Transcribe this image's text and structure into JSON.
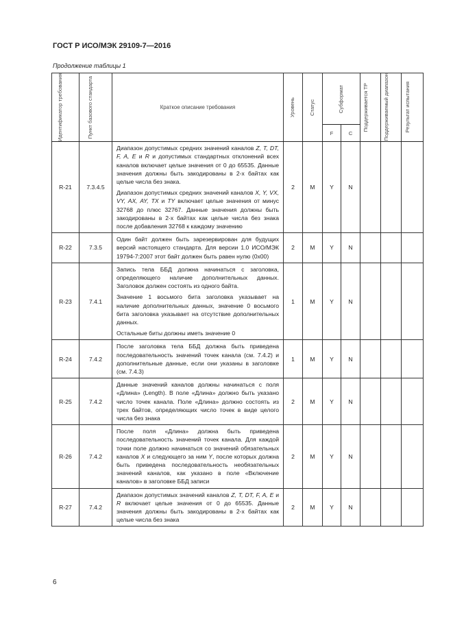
{
  "document": {
    "title": "ГОСТ Р ИСО/МЭК 29109-7—2016",
    "caption": "Продолжение таблицы 1",
    "page_number": "6"
  },
  "table": {
    "headers": {
      "id": "Идентификатор требования",
      "clause": "Пункт базового стандарта",
      "description": "Краткое описание требования",
      "level": "Уровень",
      "status": "Статус",
      "subformat": "Субформат",
      "subformat_f": "F",
      "subformat_c": "C",
      "supported_tp": "Поддерживается ТР",
      "supported_range": "Поддерживаемый диапазон",
      "test_result": "Результат испытания"
    },
    "rows": [
      {
        "id": "R-21",
        "clause": "7.3.4.5",
        "level": "2",
        "status": "M",
        "f": "Y",
        "c": "N",
        "paragraphs": [
          [
            {
              "t": "Диапазон допустимых средних значений каналов "
            },
            {
              "t": "Z, T, DT, F, A, E",
              "i": true
            },
            {
              "t": " и "
            },
            {
              "t": "R",
              "i": true
            },
            {
              "t": " и допустимых стандартных отклонений всех каналов включает целые значения от 0 до 65535. Данные значения должны быть закодированы в 2-х байтах как целые числа без знака."
            }
          ],
          [
            {
              "t": "Диапазон допустимых средних значений каналов "
            },
            {
              "t": "X, Y, VX, VY, AX, AY, TX",
              "i": true
            },
            {
              "t": " и "
            },
            {
              "t": "TY",
              "i": true
            },
            {
              "t": " включает целые значения от минус 32768 до плюс 32767. Данные значения должны быть закодированы в 2-х байтах как целые числа без знака после добавления 32768 к каждому значению"
            }
          ]
        ]
      },
      {
        "id": "R-22",
        "clause": "7.3.5",
        "level": "2",
        "status": "M",
        "f": "Y",
        "c": "N",
        "paragraphs": [
          [
            {
              "t": "Один байт должен быть зарезервирован для будущих версий настоящего стандарта. Для версии 1.0 ИСО/МЭК 19794-7:2007 этот байт должен быть равен нулю (0x00)"
            }
          ]
        ]
      },
      {
        "id": "R-23",
        "clause": "7.4.1",
        "level": "1",
        "status": "M",
        "f": "Y",
        "c": "N",
        "paragraphs": [
          [
            {
              "t": "Запись тела ББД должна начинаться с заголовка, определяющего наличие дополнительных данных. Заголовок должен состоять из одного байта."
            }
          ],
          [
            {
              "t": "Значение 1 восьмого бита заголовка указывает на наличие дополнительных данных, значение 0 восьмого бита заголовка указывает на отсутствие дополнительных данных."
            }
          ],
          [
            {
              "t": "Остальные биты должны иметь значение 0"
            }
          ]
        ]
      },
      {
        "id": "R-24",
        "clause": "7.4.2",
        "level": "1",
        "status": "M",
        "f": "Y",
        "c": "N",
        "paragraphs": [
          [
            {
              "t": "После заголовка тела ББД должна быть приведена последовательность значений точек канала (см. 7.4.2) и дополнительные данные, если они указаны в заголовке (см. 7.4.3)"
            }
          ]
        ]
      },
      {
        "id": "R-25",
        "clause": "7.4.2",
        "level": "2",
        "status": "M",
        "f": "Y",
        "c": "N",
        "paragraphs": [
          [
            {
              "t": "Данные значений каналов должны начинаться с поля «Длина» (Length). В поле «Длина» должно быть указано число точек канала. Поле «Длина» должно состоять из трех байтов, определяющих число точек в виде целого числа без знака"
            }
          ]
        ]
      },
      {
        "id": "R-26",
        "clause": "7.4.2",
        "level": "2",
        "status": "M",
        "f": "Y",
        "c": "N",
        "paragraphs": [
          [
            {
              "t": "После поля «Длина» должна быть приведена последовательность значений точек канала. Для каждой точки поле должно начинаться со значений обязательных каналов "
            },
            {
              "t": "X",
              "i": true
            },
            {
              "t": " и следующего за ним "
            },
            {
              "t": "Y",
              "i": true
            },
            {
              "t": ", после которых должна быть приведена последовательность необязательных значений каналов, как указано в поле «Включение каналов» в заголовке ББД записи"
            }
          ]
        ]
      },
      {
        "id": "R-27",
        "clause": "7.4.2",
        "level": "2",
        "status": "M",
        "f": "Y",
        "c": "N",
        "paragraphs": [
          [
            {
              "t": "Диапазон допустимых значений каналов "
            },
            {
              "t": "Z, T, DT, F, A, E",
              "i": true
            },
            {
              "t": " и "
            },
            {
              "t": "R",
              "i": true
            },
            {
              "t": " включает целые значения от 0 до 65535. Данные значения должны быть закодированы в 2-х байтах как целые числа без знака"
            }
          ]
        ]
      }
    ]
  }
}
